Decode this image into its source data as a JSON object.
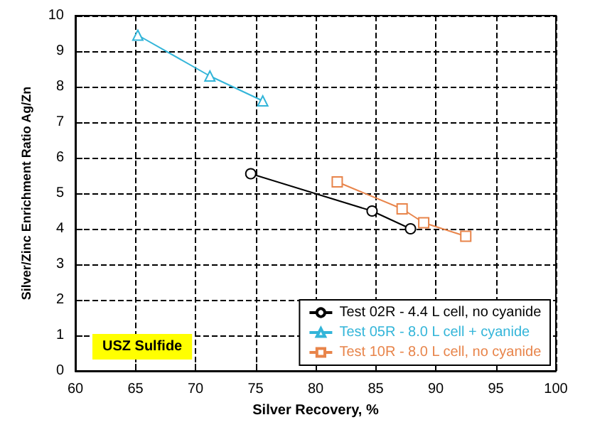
{
  "chart_data": {
    "type": "line",
    "xlabel": "Silver Recovery, %",
    "ylabel": "Silver/Zinc Enrichment Ratio Ag/Zn",
    "series": [
      {
        "name": "Test 02R - 4.4 L cell, no cyanide",
        "color": "#000000",
        "marker": "circle",
        "x": [
          74.6,
          84.7,
          87.9
        ],
        "values": [
          5.55,
          4.5,
          4.0
        ]
      },
      {
        "name": "Test 05R - 8.0 L cell + cyanide",
        "color": "#33b5d9",
        "marker": "triangle",
        "x": [
          65.2,
          71.2,
          75.6
        ],
        "values": [
          9.45,
          8.3,
          7.6
        ]
      },
      {
        "name": "Test 10R - 8.0 L cell, no cyanide",
        "color": "#e8844a",
        "marker": "square",
        "x": [
          81.8,
          87.2,
          89.0,
          92.5
        ],
        "values": [
          5.32,
          4.56,
          4.17,
          3.79
        ]
      }
    ],
    "annotations": [
      "USZ Sulfide"
    ],
    "xlim": [
      60,
      100
    ],
    "xticks": [
      60,
      65,
      70,
      75,
      80,
      85,
      90,
      95,
      100
    ],
    "ylim": [
      0,
      10
    ],
    "yticks": [
      0,
      1,
      2,
      3,
      4,
      5,
      6,
      7,
      8,
      9,
      10
    ],
    "grid": true,
    "legend": "bottom right"
  }
}
